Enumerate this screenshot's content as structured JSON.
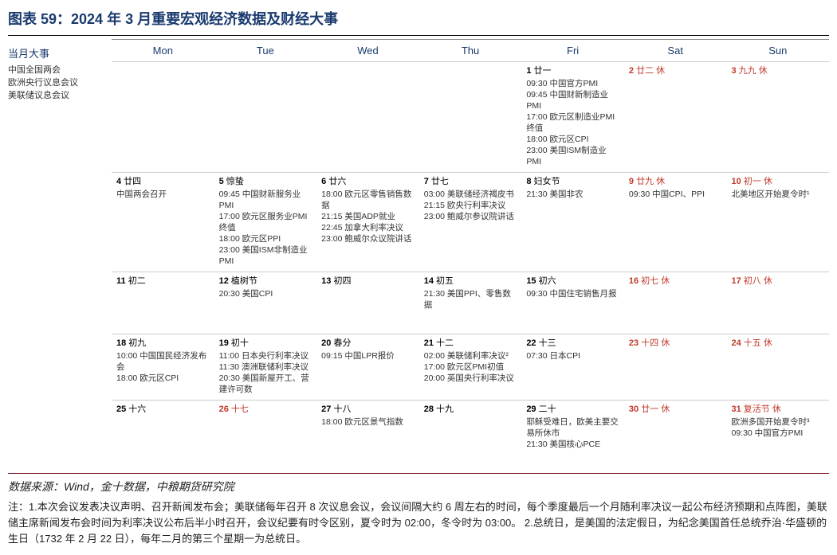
{
  "title": "图表 59：2024 年 3 月重要宏观经济数据及财经大事",
  "sidebar": {
    "heading": "当月大事",
    "items": [
      "中国全国两会",
      "欧洲央行议息会议",
      "美联储议息会议"
    ]
  },
  "weekdays": [
    "Mon",
    "Tue",
    "Wed",
    "Thu",
    "Fri",
    "Sat",
    "Sun"
  ],
  "weeks": [
    [
      {
        "day": "",
        "lunar": "",
        "red": false,
        "events": []
      },
      {
        "day": "",
        "lunar": "",
        "red": false,
        "events": []
      },
      {
        "day": "",
        "lunar": "",
        "red": false,
        "events": []
      },
      {
        "day": "",
        "lunar": "",
        "red": false,
        "events": []
      },
      {
        "day": "1",
        "lunar": "廿一",
        "red": false,
        "events": [
          "09:30 中国官方PMI",
          "09:45 中国财新制造业PMI",
          "17:00 欧元区制造业PMI终值",
          "18:00 欧元区CPI",
          "23:00 美国ISM制造业PMI"
        ]
      },
      {
        "day": "2",
        "lunar": "廿二 休",
        "red": true,
        "events": []
      },
      {
        "day": "3",
        "lunar": "九九 休",
        "red": true,
        "events": []
      }
    ],
    [
      {
        "day": "4",
        "lunar": "廿四",
        "red": false,
        "events": [
          "中国两会召开"
        ]
      },
      {
        "day": "5",
        "lunar": "惊蛰",
        "red": false,
        "events": [
          "09:45 中国财新服务业PMI",
          "17:00 欧元区服务业PMI终值",
          "18:00 欧元区PPI",
          "23:00 美国ISM非制造业PMI"
        ]
      },
      {
        "day": "6",
        "lunar": "廿六",
        "red": false,
        "events": [
          "18:00 欧元区零售销售数据",
          "21:15 美国ADP就业",
          "22:45 加拿大利率决议",
          "23:00 鲍威尔众议院讲话"
        ]
      },
      {
        "day": "7",
        "lunar": "廿七",
        "red": false,
        "events": [
          "03:00 美联储经济褐皮书",
          "21:15 欧央行利率决议",
          "23:00 鲍威尔参议院讲话"
        ]
      },
      {
        "day": "8",
        "lunar": "妇女节",
        "red": false,
        "events": [
          "21:30 美国非农"
        ]
      },
      {
        "day": "9",
        "lunar": "廿九 休",
        "red": true,
        "events": [
          "09:30 中国CPI、PPI"
        ]
      },
      {
        "day": "10",
        "lunar": "初一 休",
        "red": true,
        "events": [
          "北美地区开始夏令时¹"
        ]
      }
    ],
    [
      {
        "day": "11",
        "lunar": "初二",
        "red": false,
        "events": []
      },
      {
        "day": "12",
        "lunar": "植树节",
        "red": false,
        "events": [
          "20:30 美国CPI"
        ]
      },
      {
        "day": "13",
        "lunar": "初四",
        "red": false,
        "events": []
      },
      {
        "day": "14",
        "lunar": "初五",
        "red": false,
        "events": [
          "21:30 美国PPI、零售数据"
        ]
      },
      {
        "day": "15",
        "lunar": "初六",
        "red": false,
        "events": [
          "09:30 中国住宅销售月报"
        ]
      },
      {
        "day": "16",
        "lunar": "初七 休",
        "red": true,
        "events": []
      },
      {
        "day": "17",
        "lunar": "初八 休",
        "red": true,
        "events": []
      }
    ],
    [
      {
        "day": "18",
        "lunar": "初九",
        "red": false,
        "events": [
          "10:00 中国国民经济发布会",
          "18:00 欧元区CPI"
        ]
      },
      {
        "day": "19",
        "lunar": "初十",
        "red": false,
        "events": [
          "11:00 日本央行利率决议",
          "11:30 澳洲联储利率决议",
          "20:30 美国新屋开工、营建许可数"
        ]
      },
      {
        "day": "20",
        "lunar": "春分",
        "red": false,
        "events": [
          "09:15 中国LPR报价"
        ]
      },
      {
        "day": "21",
        "lunar": "十二",
        "red": false,
        "events": [
          "02:00 美联储利率决议²",
          "17:00 欧元区PMI初值",
          "20:00 英国央行利率决议"
        ]
      },
      {
        "day": "22",
        "lunar": "十三",
        "red": false,
        "events": [
          "07:30 日本CPI"
        ]
      },
      {
        "day": "23",
        "lunar": "十四 休",
        "red": true,
        "events": []
      },
      {
        "day": "24",
        "lunar": "十五 休",
        "red": true,
        "events": []
      }
    ],
    [
      {
        "day": "25",
        "lunar": "十六",
        "red": false,
        "events": []
      },
      {
        "day": "26",
        "lunar": "十七",
        "red": true,
        "events": []
      },
      {
        "day": "27",
        "lunar": "十八",
        "red": false,
        "events": [
          "18:00 欧元区景气指数"
        ]
      },
      {
        "day": "28",
        "lunar": "十九",
        "red": false,
        "events": []
      },
      {
        "day": "29",
        "lunar": "二十",
        "red": false,
        "events": [
          "耶稣受难日，欧美主要交易所休市",
          "21:30 美国核心PCE"
        ]
      },
      {
        "day": "30",
        "lunar": "廿一 休",
        "red": true,
        "events": []
      },
      {
        "day": "31",
        "lunar": "复活节 休",
        "red": true,
        "events": [
          "欧洲多国开始夏令时³",
          "09:30 中国官方PMI"
        ]
      }
    ]
  ],
  "source": "数据来源：Wind，金十数据，中粮期货研究院",
  "notes": "注：1.本次会议发表决议声明、召开新闻发布会；美联储每年召开 8 次议息会议，会议间隔大约 6 周左右的时间，每个季度最后一个月随利率决议一起公布经济预期和点阵图，美联储主席新闻发布会时间为利率决议公布后半小时召开，会议纪要有时令区别，夏令时为 02:00，冬令时为 03:00。 2.总统日，是美国的法定假日，为纪念美国首任总统乔治·华盛顿的生日（1732 年 2 月 22 日），每年二月的第三个星期一为总统日。"
}
